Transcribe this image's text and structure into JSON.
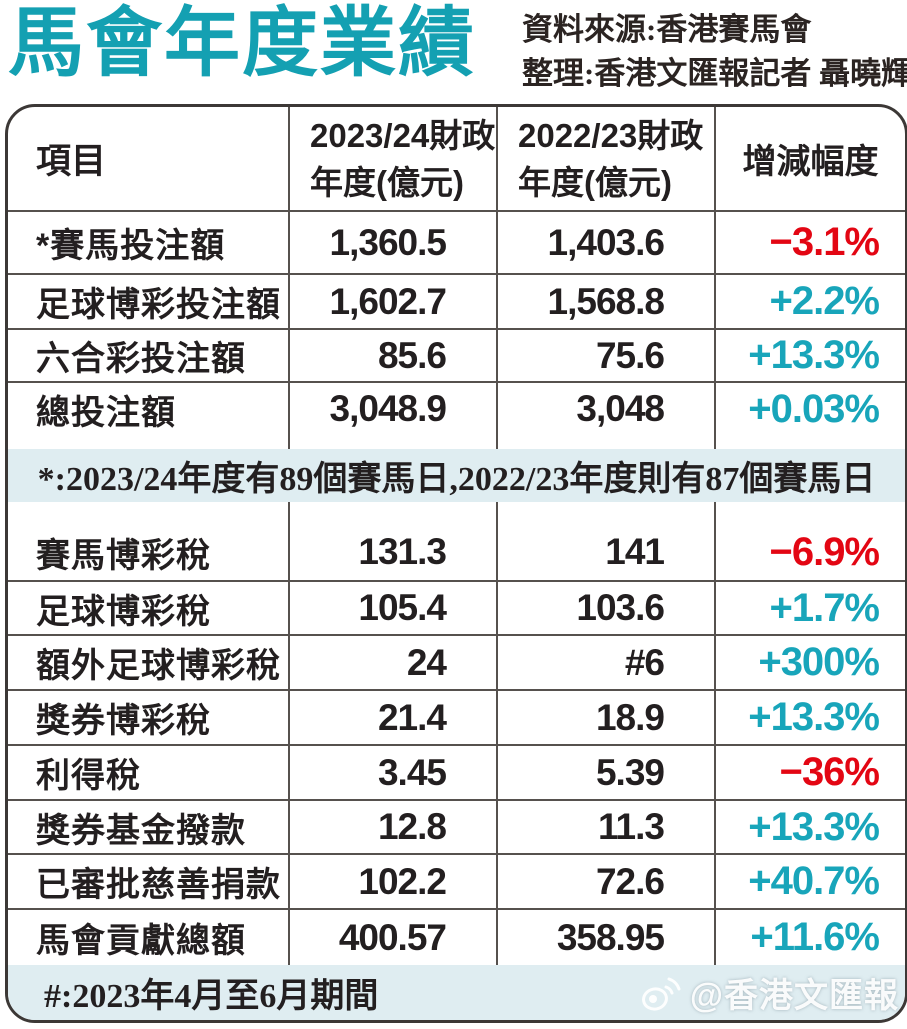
{
  "masthead": {
    "title": "馬會年度業績",
    "source_line1": "資料來源:香港賽馬會",
    "source_line2": "整理:香港文匯報記者 聶曉輝"
  },
  "table": {
    "columns": {
      "item": "項目",
      "fy2324_line1": "2023/24財政",
      "fy2324_line2": "年度(億元)",
      "fy2223_line1": "2022/23財政",
      "fy2223_line2": "年度(億元)",
      "change": "增減幅度"
    },
    "section1": {
      "rows": [
        {
          "item": "*賽馬投注額",
          "fy2324": "1,360.5",
          "fy2223": "1,403.6",
          "change": "−3.1%",
          "dir": "down"
        },
        {
          "item": "足球博彩投注額",
          "fy2324": "1,602.7",
          "fy2223": "1,568.8",
          "change": "+2.2%",
          "dir": "up"
        },
        {
          "item": "六合彩投注額",
          "fy2324": "85.6",
          "fy2223": "75.6",
          "change": "+13.3%",
          "dir": "up"
        },
        {
          "item": "總投注額",
          "fy2324": "3,048.9",
          "fy2223": "3,048",
          "change": "+0.03%",
          "dir": "up"
        }
      ]
    },
    "note": "*:2023/24年度有89個賽馬日,2022/23年度則有87個賽馬日",
    "section2": {
      "rows": [
        {
          "item": "賽馬博彩稅",
          "fy2324": "131.3",
          "fy2223": "141",
          "change": "−6.9%",
          "dir": "down"
        },
        {
          "item": "足球博彩稅",
          "fy2324": "105.4",
          "fy2223": "103.6",
          "change": "+1.7%",
          "dir": "up"
        },
        {
          "item": "額外足球博彩稅",
          "fy2324": "24",
          "fy2223": "#6",
          "change": "+300%",
          "dir": "up"
        },
        {
          "item": "獎券博彩稅",
          "fy2324": "21.4",
          "fy2223": "18.9",
          "change": "+13.3%",
          "dir": "up"
        },
        {
          "item": "利得稅",
          "fy2324": "3.45",
          "fy2223": "5.39",
          "change": "−36%",
          "dir": "down"
        },
        {
          "item": "獎券基金撥款",
          "fy2324": "12.8",
          "fy2223": "11.3",
          "change": "+13.3%",
          "dir": "up"
        },
        {
          "item": "已審批慈善捐款",
          "fy2324": "102.2",
          "fy2223": "72.6",
          "change": "+40.7%",
          "dir": "up"
        },
        {
          "item": "馬會貢獻總額",
          "fy2324": "400.57",
          "fy2223": "358.95",
          "change": "+11.6%",
          "dir": "up"
        }
      ]
    },
    "footnote": "#:2023年4月至6月期間"
  },
  "watermark": {
    "icon": "weibo-icon",
    "handle": "@香港文匯報"
  },
  "colors": {
    "title_teal": "#14a0b2",
    "accent_teal": "#18a5ba",
    "negative_red": "#e30613",
    "band_bg": "#dfedf1"
  },
  "chart_data": {
    "type": "table",
    "title": "馬會年度業績",
    "source": "資料來源:香港賽馬會",
    "compiled_by": "整理:香港文匯報記者 聶曉輝",
    "columns": [
      "項目",
      "2023/24財政年度(億元)",
      "2022/23財政年度(億元)",
      "增減幅度"
    ],
    "rows": [
      [
        "*賽馬投注額",
        "1,360.5",
        "1,403.6",
        "−3.1%"
      ],
      [
        "足球博彩投注額",
        "1,602.7",
        "1,568.8",
        "+2.2%"
      ],
      [
        "六合彩投注額",
        "85.6",
        "75.6",
        "+13.3%"
      ],
      [
        "總投注額",
        "3,048.9",
        "3,048",
        "+0.03%"
      ],
      [
        "賽馬博彩稅",
        "131.3",
        "141",
        "−6.9%"
      ],
      [
        "足球博彩稅",
        "105.4",
        "103.6",
        "+1.7%"
      ],
      [
        "額外足球博彩稅",
        "24",
        "#6",
        "+300%"
      ],
      [
        "獎券博彩稅",
        "21.4",
        "18.9",
        "+13.3%"
      ],
      [
        "利得稅",
        "3.45",
        "5.39",
        "−36%"
      ],
      [
        "獎券基金撥款",
        "12.8",
        "11.3",
        "+13.3%"
      ],
      [
        "已審批慈善捐款",
        "102.2",
        "72.6",
        "+40.7%"
      ],
      [
        "馬會貢獻總額",
        "400.57",
        "358.95",
        "+11.6%"
      ]
    ],
    "notes": [
      "*:2023/24年度有89個賽馬日,2022/23年度則有87個賽馬日",
      "#:2023年4月至6月期間"
    ]
  }
}
